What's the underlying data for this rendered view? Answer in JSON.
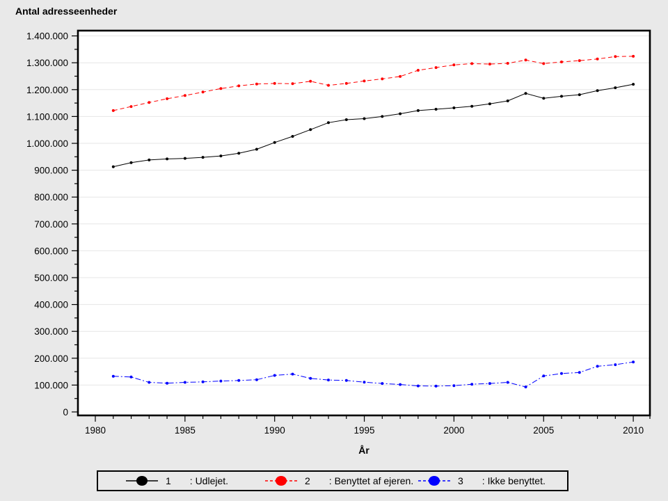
{
  "title": "Antal adresseenheder",
  "colors": {
    "figure_bg": "#e9e9e9",
    "plot_bg": "#ffffff",
    "grid": "#e6e6e6",
    "frame": "#000000",
    "series_1": "#000000",
    "series_2": "#ff0000",
    "series_3": "#0000ff"
  },
  "chart_data": {
    "type": "line",
    "title": "Antal adresseenheder",
    "xlabel": "År",
    "ylabel": "",
    "grid": "horizontal",
    "legend_position": "bottom",
    "xlim": [
      1979,
      2011
    ],
    "ylim": [
      0,
      1400000
    ],
    "xticks_major": [
      1980,
      1985,
      1990,
      1995,
      2000,
      2005,
      2010
    ],
    "xtick_minor_step": 1,
    "ytick_major_step": 100000,
    "ytick_minor_step": 50000,
    "ytick_labels": [
      "0",
      "100.000",
      "200.000",
      "300.000",
      "400.000",
      "500.000",
      "600.000",
      "700.000",
      "800.000",
      "900.000",
      "1.000.000",
      "1.100.000",
      "1.200.000",
      "1.300.000",
      "1.400.000"
    ],
    "x": [
      1981,
      1982,
      1983,
      1984,
      1985,
      1986,
      1987,
      1988,
      1989,
      1990,
      1991,
      1992,
      1993,
      1994,
      1995,
      1996,
      1997,
      1998,
      1999,
      2000,
      2001,
      2002,
      2003,
      2004,
      2005,
      2006,
      2007,
      2008,
      2009,
      2010
    ],
    "series": [
      {
        "name": "1",
        "label": ": Udlejet.",
        "color": "#000000",
        "dash": "solid",
        "values": [
          913000,
          928000,
          938000,
          942000,
          944000,
          948000,
          953000,
          963000,
          978000,
          1003000,
          1026000,
          1051000,
          1077000,
          1088000,
          1092000,
          1100000,
          1110000,
          1122000,
          1127000,
          1132000,
          1138000,
          1147000,
          1158000,
          1186000,
          1168000,
          1175000,
          1181000,
          1196000,
          1207000,
          1220000
        ]
      },
      {
        "name": "2",
        "label": ": Benyttet af ejeren.",
        "color": "#ff0000",
        "dash": "dashed",
        "values": [
          1122000,
          1137000,
          1152000,
          1166000,
          1178000,
          1191000,
          1204000,
          1214000,
          1221000,
          1223000,
          1222000,
          1231000,
          1216000,
          1223000,
          1232000,
          1240000,
          1249000,
          1272000,
          1282000,
          1292000,
          1297000,
          1295000,
          1298000,
          1310000,
          1297000,
          1303000,
          1308000,
          1314000,
          1323000,
          1324000
        ]
      },
      {
        "name": "3",
        "label": ": Ikke benyttet.",
        "color": "#0000ff",
        "dash": "dash-dot-dot",
        "values": [
          133000,
          130000,
          110000,
          107000,
          110000,
          112000,
          115000,
          117000,
          120000,
          136000,
          141000,
          125000,
          119000,
          117000,
          111000,
          106000,
          102000,
          97000,
          96000,
          98000,
          103000,
          106000,
          110000,
          93000,
          134000,
          143000,
          147000,
          170000,
          176000,
          186000
        ]
      }
    ]
  }
}
